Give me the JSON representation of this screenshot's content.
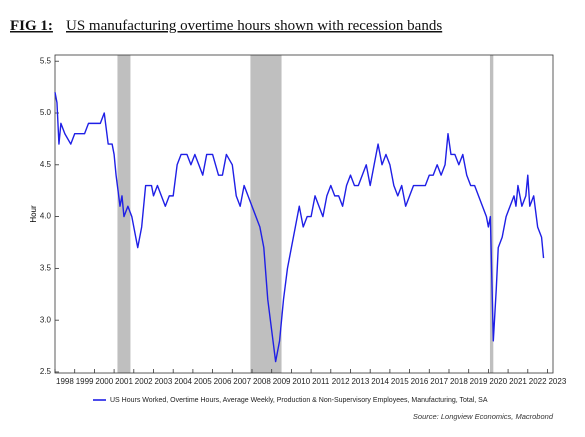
{
  "chart_data": {
    "type": "line",
    "figure_label": "FIG 1:",
    "title": "US manufacturing overtime hours shown with recession bands",
    "y_label": "Hour",
    "source": "Source: Longview Economics, Macrobond",
    "xlim": [
      1998,
      2023.28
    ],
    "ylim": [
      2.49,
      5.56
    ],
    "xticks": [
      1998,
      1999,
      2000,
      2001,
      2002,
      2003,
      2004,
      2005,
      2006,
      2007,
      2008,
      2009,
      2010,
      2011,
      2012,
      2013,
      2014,
      2015,
      2016,
      2017,
      2018,
      2019,
      2020,
      2021,
      2022,
      2023
    ],
    "yticks": [
      2.5,
      {
        "value": 3,
        "label": "3.0"
      },
      3.5,
      {
        "value": 4,
        "label": "4.0"
      },
      4.5,
      {
        "value": 5,
        "label": "5.0"
      },
      5.5
    ],
    "recessions": [
      [
        2001.17,
        2001.83
      ],
      [
        2007.92,
        2009.5
      ],
      [
        2020.08,
        2020.25
      ]
    ],
    "recession_color": "#bfbfbf",
    "x": [
      1998.0,
      1998.1,
      1998.2,
      1998.3,
      1998.5,
      1998.8,
      1999.0,
      1999.3,
      1999.5,
      1999.7,
      2000.0,
      2000.3,
      2000.5,
      2000.7,
      2000.9,
      2001.0,
      2001.1,
      2001.3,
      2001.4,
      2001.5,
      2001.7,
      2001.9,
      2002.0,
      2002.2,
      2002.4,
      2002.6,
      2002.9,
      2003.0,
      2003.2,
      2003.4,
      2003.6,
      2003.8,
      2004.0,
      2004.2,
      2004.4,
      2004.7,
      2004.9,
      2005.1,
      2005.3,
      2005.5,
      2005.7,
      2006.0,
      2006.3,
      2006.5,
      2006.7,
      2007.0,
      2007.2,
      2007.4,
      2007.6,
      2007.8,
      2008.0,
      2008.2,
      2008.4,
      2008.6,
      2008.8,
      2009.0,
      2009.2,
      2009.4,
      2009.6,
      2009.8,
      2010.0,
      2010.2,
      2010.4,
      2010.6,
      2010.8,
      2011.0,
      2011.2,
      2011.4,
      2011.6,
      2011.8,
      2012.0,
      2012.2,
      2012.4,
      2012.6,
      2012.8,
      2013.0,
      2013.2,
      2013.4,
      2013.6,
      2013.8,
      2014.0,
      2014.2,
      2014.4,
      2014.6,
      2014.8,
      2015.0,
      2015.2,
      2015.4,
      2015.6,
      2015.8,
      2016.0,
      2016.2,
      2016.4,
      2016.6,
      2016.8,
      2017.0,
      2017.2,
      2017.4,
      2017.6,
      2017.8,
      2017.95,
      2018.1,
      2018.3,
      2018.5,
      2018.7,
      2018.9,
      2019.1,
      2019.3,
      2019.5,
      2019.7,
      2019.9,
      2020.0,
      2020.1,
      2020.25,
      2020.4,
      2020.5,
      2020.7,
      2020.9,
      2021.1,
      2021.3,
      2021.4,
      2021.5,
      2021.7,
      2021.9,
      2022.0,
      2022.1,
      2022.3,
      2022.5,
      2022.7,
      2022.8
    ],
    "series": [
      {
        "name": "US Hours Worked, Overtime Hours, Average Weekly, Production & Non-Supervisory Employees, Manufacturing, Total, SA",
        "color": "#1f1fe6",
        "values": [
          5.2,
          5.1,
          4.7,
          4.9,
          4.8,
          4.7,
          4.8,
          4.8,
          4.8,
          4.9,
          4.9,
          4.9,
          5.0,
          4.7,
          4.7,
          4.6,
          4.4,
          4.1,
          4.2,
          4.0,
          4.1,
          4.0,
          3.9,
          3.7,
          3.9,
          4.3,
          4.3,
          4.2,
          4.3,
          4.2,
          4.1,
          4.2,
          4.2,
          4.5,
          4.6,
          4.6,
          4.5,
          4.6,
          4.5,
          4.4,
          4.6,
          4.6,
          4.4,
          4.4,
          4.6,
          4.5,
          4.2,
          4.1,
          4.3,
          4.2,
          4.1,
          4.0,
          3.9,
          3.7,
          3.2,
          2.9,
          2.6,
          2.8,
          3.2,
          3.5,
          3.7,
          3.9,
          4.1,
          3.9,
          4.0,
          4.0,
          4.2,
          4.1,
          4.0,
          4.2,
          4.3,
          4.2,
          4.2,
          4.1,
          4.3,
          4.4,
          4.3,
          4.3,
          4.4,
          4.5,
          4.3,
          4.5,
          4.7,
          4.5,
          4.6,
          4.5,
          4.3,
          4.2,
          4.3,
          4.1,
          4.2,
          4.3,
          4.3,
          4.3,
          4.3,
          4.4,
          4.4,
          4.5,
          4.4,
          4.5,
          4.8,
          4.6,
          4.6,
          4.5,
          4.6,
          4.4,
          4.3,
          4.3,
          4.2,
          4.1,
          4.0,
          3.9,
          4.0,
          2.8,
          3.3,
          3.7,
          3.8,
          4.0,
          4.1,
          4.2,
          4.1,
          4.3,
          4.1,
          4.2,
          4.4,
          4.1,
          4.2,
          3.9,
          3.8,
          3.6
        ]
      }
    ]
  }
}
